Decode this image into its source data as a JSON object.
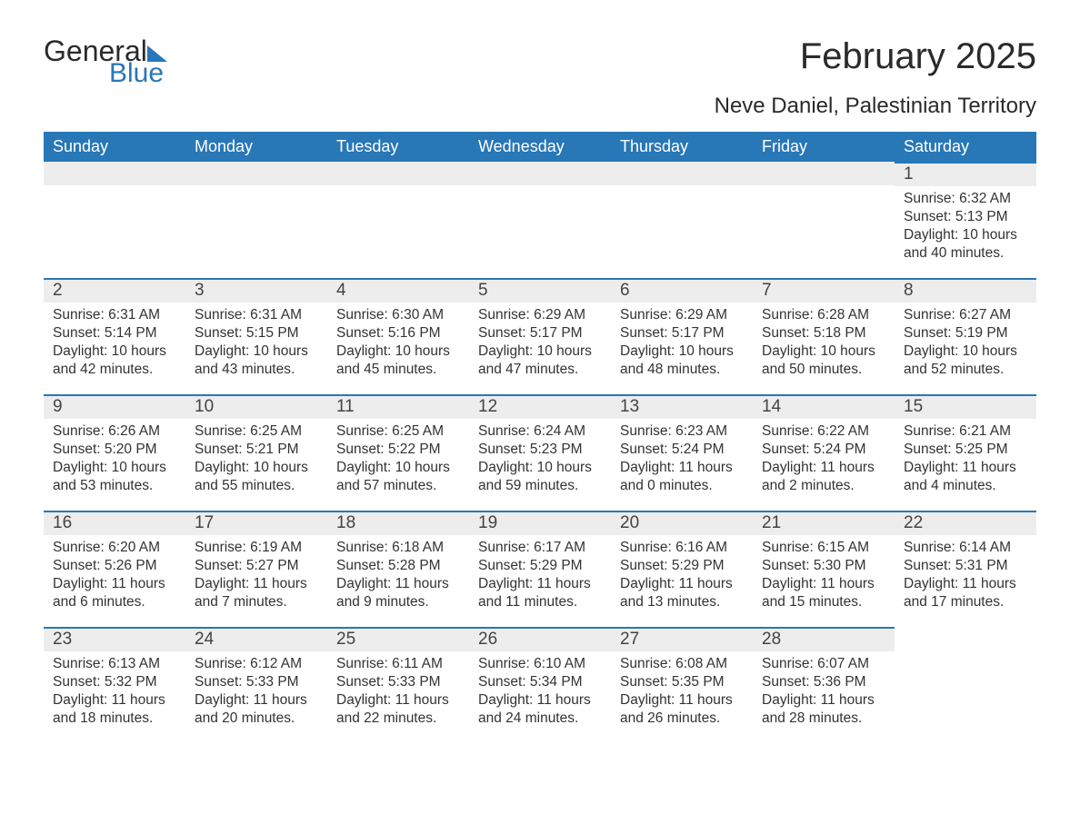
{
  "logo": {
    "word1": "General",
    "word2": "Blue"
  },
  "title": "February 2025",
  "location": "Neve Daniel, Palestinian Territory",
  "colors": {
    "brand_blue": "#2877b7",
    "header_text": "#ffffff",
    "daynum_bg": "#ededed",
    "body_text": "#333333",
    "page_bg": "#ffffff"
  },
  "day_headers": [
    "Sunday",
    "Monday",
    "Tuesday",
    "Wednesday",
    "Thursday",
    "Friday",
    "Saturday"
  ],
  "weeks": [
    [
      null,
      null,
      null,
      null,
      null,
      null,
      {
        "n": "1",
        "sunrise": "Sunrise: 6:32 AM",
        "sunset": "Sunset: 5:13 PM",
        "daylight": "Daylight: 10 hours and 40 minutes."
      }
    ],
    [
      {
        "n": "2",
        "sunrise": "Sunrise: 6:31 AM",
        "sunset": "Sunset: 5:14 PM",
        "daylight": "Daylight: 10 hours and 42 minutes."
      },
      {
        "n": "3",
        "sunrise": "Sunrise: 6:31 AM",
        "sunset": "Sunset: 5:15 PM",
        "daylight": "Daylight: 10 hours and 43 minutes."
      },
      {
        "n": "4",
        "sunrise": "Sunrise: 6:30 AM",
        "sunset": "Sunset: 5:16 PM",
        "daylight": "Daylight: 10 hours and 45 minutes."
      },
      {
        "n": "5",
        "sunrise": "Sunrise: 6:29 AM",
        "sunset": "Sunset: 5:17 PM",
        "daylight": "Daylight: 10 hours and 47 minutes."
      },
      {
        "n": "6",
        "sunrise": "Sunrise: 6:29 AM",
        "sunset": "Sunset: 5:17 PM",
        "daylight": "Daylight: 10 hours and 48 minutes."
      },
      {
        "n": "7",
        "sunrise": "Sunrise: 6:28 AM",
        "sunset": "Sunset: 5:18 PM",
        "daylight": "Daylight: 10 hours and 50 minutes."
      },
      {
        "n": "8",
        "sunrise": "Sunrise: 6:27 AM",
        "sunset": "Sunset: 5:19 PM",
        "daylight": "Daylight: 10 hours and 52 minutes."
      }
    ],
    [
      {
        "n": "9",
        "sunrise": "Sunrise: 6:26 AM",
        "sunset": "Sunset: 5:20 PM",
        "daylight": "Daylight: 10 hours and 53 minutes."
      },
      {
        "n": "10",
        "sunrise": "Sunrise: 6:25 AM",
        "sunset": "Sunset: 5:21 PM",
        "daylight": "Daylight: 10 hours and 55 minutes."
      },
      {
        "n": "11",
        "sunrise": "Sunrise: 6:25 AM",
        "sunset": "Sunset: 5:22 PM",
        "daylight": "Daylight: 10 hours and 57 minutes."
      },
      {
        "n": "12",
        "sunrise": "Sunrise: 6:24 AM",
        "sunset": "Sunset: 5:23 PM",
        "daylight": "Daylight: 10 hours and 59 minutes."
      },
      {
        "n": "13",
        "sunrise": "Sunrise: 6:23 AM",
        "sunset": "Sunset: 5:24 PM",
        "daylight": "Daylight: 11 hours and 0 minutes."
      },
      {
        "n": "14",
        "sunrise": "Sunrise: 6:22 AM",
        "sunset": "Sunset: 5:24 PM",
        "daylight": "Daylight: 11 hours and 2 minutes."
      },
      {
        "n": "15",
        "sunrise": "Sunrise: 6:21 AM",
        "sunset": "Sunset: 5:25 PM",
        "daylight": "Daylight: 11 hours and 4 minutes."
      }
    ],
    [
      {
        "n": "16",
        "sunrise": "Sunrise: 6:20 AM",
        "sunset": "Sunset: 5:26 PM",
        "daylight": "Daylight: 11 hours and 6 minutes."
      },
      {
        "n": "17",
        "sunrise": "Sunrise: 6:19 AM",
        "sunset": "Sunset: 5:27 PM",
        "daylight": "Daylight: 11 hours and 7 minutes."
      },
      {
        "n": "18",
        "sunrise": "Sunrise: 6:18 AM",
        "sunset": "Sunset: 5:28 PM",
        "daylight": "Daylight: 11 hours and 9 minutes."
      },
      {
        "n": "19",
        "sunrise": "Sunrise: 6:17 AM",
        "sunset": "Sunset: 5:29 PM",
        "daylight": "Daylight: 11 hours and 11 minutes."
      },
      {
        "n": "20",
        "sunrise": "Sunrise: 6:16 AM",
        "sunset": "Sunset: 5:29 PM",
        "daylight": "Daylight: 11 hours and 13 minutes."
      },
      {
        "n": "21",
        "sunrise": "Sunrise: 6:15 AM",
        "sunset": "Sunset: 5:30 PM",
        "daylight": "Daylight: 11 hours and 15 minutes."
      },
      {
        "n": "22",
        "sunrise": "Sunrise: 6:14 AM",
        "sunset": "Sunset: 5:31 PM",
        "daylight": "Daylight: 11 hours and 17 minutes."
      }
    ],
    [
      {
        "n": "23",
        "sunrise": "Sunrise: 6:13 AM",
        "sunset": "Sunset: 5:32 PM",
        "daylight": "Daylight: 11 hours and 18 minutes."
      },
      {
        "n": "24",
        "sunrise": "Sunrise: 6:12 AM",
        "sunset": "Sunset: 5:33 PM",
        "daylight": "Daylight: 11 hours and 20 minutes."
      },
      {
        "n": "25",
        "sunrise": "Sunrise: 6:11 AM",
        "sunset": "Sunset: 5:33 PM",
        "daylight": "Daylight: 11 hours and 22 minutes."
      },
      {
        "n": "26",
        "sunrise": "Sunrise: 6:10 AM",
        "sunset": "Sunset: 5:34 PM",
        "daylight": "Daylight: 11 hours and 24 minutes."
      },
      {
        "n": "27",
        "sunrise": "Sunrise: 6:08 AM",
        "sunset": "Sunset: 5:35 PM",
        "daylight": "Daylight: 11 hours and 26 minutes."
      },
      {
        "n": "28",
        "sunrise": "Sunrise: 6:07 AM",
        "sunset": "Sunset: 5:36 PM",
        "daylight": "Daylight: 11 hours and 28 minutes."
      },
      null
    ]
  ]
}
